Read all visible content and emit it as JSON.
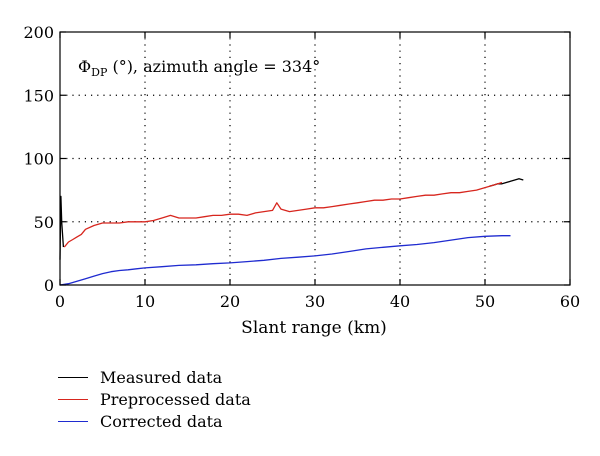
{
  "chart_data": {
    "type": "line",
    "title": "",
    "annotation": {
      "symbol": "Φ",
      "subscript": "DP",
      "rest": " (°), azimuth angle = 334°"
    },
    "xlabel": "Slant range (km)",
    "ylabel": "",
    "xlim": [
      0,
      60
    ],
    "ylim": [
      0,
      200
    ],
    "xticks": [
      0,
      10,
      20,
      30,
      40,
      50,
      60
    ],
    "yticks": [
      0,
      50,
      100,
      150,
      200
    ],
    "grid": "dotted",
    "legend_position": "below",
    "series": [
      {
        "name": "Measured data",
        "color": "#000000",
        "x": [
          0,
          0.1,
          0.2,
          0.4,
          50.5,
          51,
          51.5,
          52,
          52.5,
          53,
          53.5,
          54,
          54.5
        ],
        "y": [
          20,
          70,
          50,
          30,
          78,
          79,
          80,
          80,
          81,
          82,
          83,
          84,
          83
        ]
      },
      {
        "name": "Preprocessed data",
        "color": "#d7261e",
        "x": [
          0.5,
          1,
          1.5,
          2,
          2.5,
          3,
          4,
          5,
          6,
          7,
          8,
          9,
          10,
          11,
          12,
          13,
          14,
          15,
          16,
          17,
          18,
          19,
          20,
          21,
          22,
          23,
          24,
          25,
          25.5,
          26,
          27,
          28,
          29,
          30,
          31,
          32,
          33,
          34,
          35,
          36,
          37,
          38,
          39,
          40,
          41,
          42,
          43,
          44,
          45,
          46,
          47,
          48,
          49,
          50,
          51,
          52
        ],
        "y": [
          30,
          34,
          36,
          38,
          40,
          44,
          47,
          49,
          49,
          49,
          50,
          50,
          50,
          51,
          53,
          55,
          53,
          53,
          53,
          54,
          55,
          55,
          56,
          56,
          55,
          57,
          58,
          59,
          65,
          60,
          58,
          59,
          60,
          61,
          61,
          62,
          63,
          64,
          65,
          66,
          67,
          67,
          68,
          68,
          69,
          70,
          71,
          71,
          72,
          73,
          73,
          74,
          75,
          77,
          79,
          81
        ]
      },
      {
        "name": "Corrected data",
        "color": "#1f2bd0",
        "x": [
          0,
          1,
          2,
          3,
          4,
          5,
          6,
          7,
          8,
          9,
          10,
          12,
          14,
          16,
          18,
          20,
          22,
          24,
          26,
          28,
          30,
          32,
          34,
          36,
          38,
          40,
          42,
          44,
          46,
          48,
          50,
          52,
          53
        ],
        "y": [
          0,
          1,
          3,
          5,
          7,
          9,
          10.5,
          11.5,
          12,
          12.8,
          13.5,
          14.5,
          15.5,
          16,
          16.8,
          17.5,
          18.5,
          19.5,
          21,
          22,
          23,
          24.5,
          26.5,
          28.5,
          29.8,
          31,
          32,
          33.5,
          35.5,
          37.5,
          38.5,
          39,
          39
        ]
      }
    ]
  }
}
